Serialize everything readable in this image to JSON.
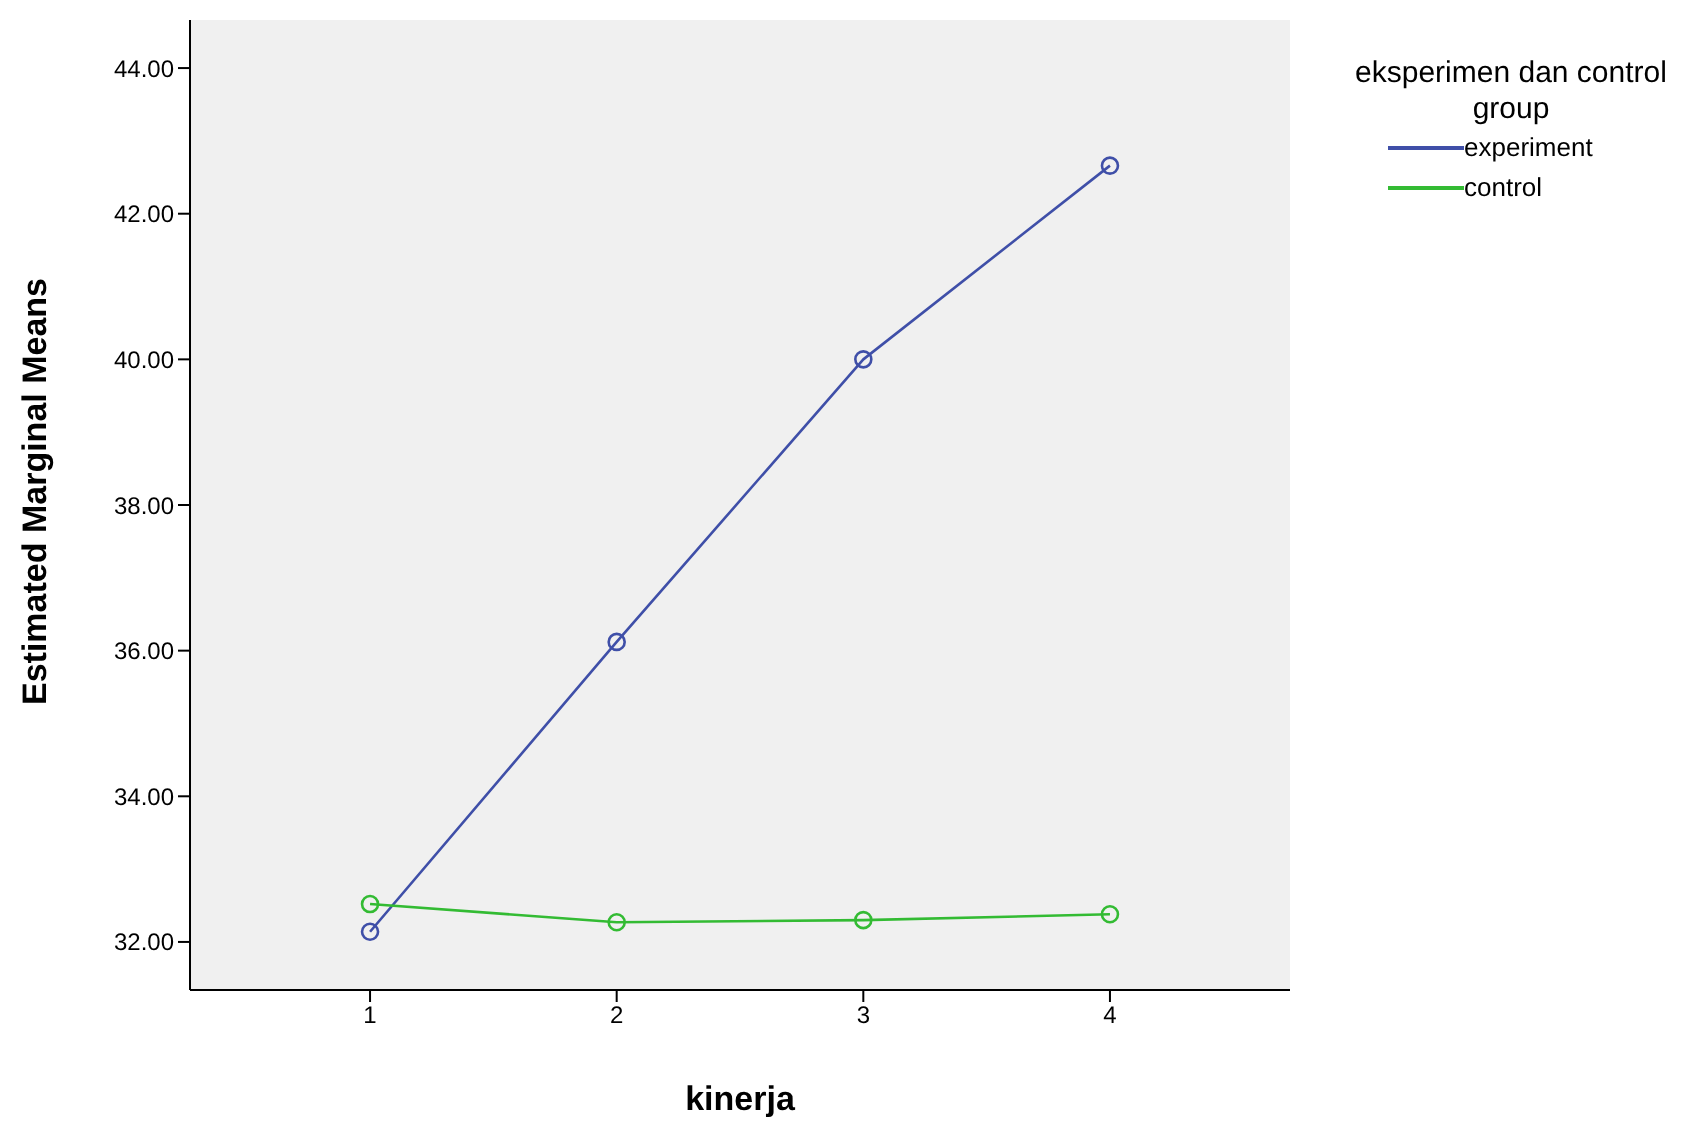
{
  "chart_data": {
    "type": "line",
    "xlabel": "kinerja",
    "ylabel": "Estimated Marginal Means",
    "legend_title": "eksperimen dan control group",
    "categories": [
      "1",
      "2",
      "3",
      "4"
    ],
    "series": [
      {
        "name": "experiment",
        "color": "#3f4fa8",
        "values": [
          32.14,
          36.12,
          40.0,
          42.66
        ]
      },
      {
        "name": "control",
        "color": "#33bb33",
        "values": [
          32.52,
          32.27,
          32.3,
          32.38
        ]
      }
    ],
    "ylim": [
      31.34,
      44.66
    ],
    "yticks": [
      {
        "value": 32,
        "label": "32.00"
      },
      {
        "value": 34,
        "label": "34.00"
      },
      {
        "value": 36,
        "label": "36.00"
      },
      {
        "value": 38,
        "label": "38.00"
      },
      {
        "value": 40,
        "label": "40.00"
      },
      {
        "value": 42,
        "label": "42.00"
      },
      {
        "value": 44,
        "label": "44.00"
      }
    ],
    "grid": false,
    "legend": "top right",
    "marker": "circle",
    "line_style": "solid"
  }
}
